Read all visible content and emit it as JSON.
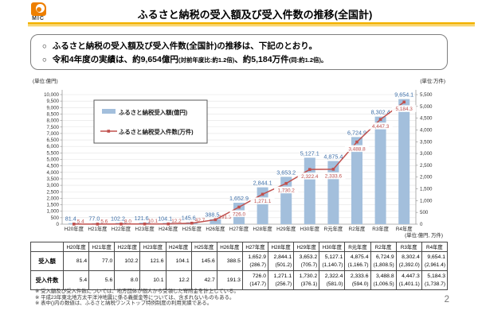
{
  "header": {
    "logo_text": "MIC",
    "title": "ふるさと納税の受入額及び受入件数の推移(全国計)",
    "accent_color": "#f3b500",
    "logo_color": "#ee7f00"
  },
  "summary_box": {
    "bullet_marker": "○",
    "bullet1": "ふるさと納税の受入額及び受入件数(全国計)の推移は、下記のとおり。",
    "bullet2_part1": "令和4年度の実績は、約9,654億円",
    "bullet2_part2": "(対前年度比:約1.2倍)",
    "bullet2_part3": "、約5,184万件",
    "bullet2_part4": "(同:約1.2倍)。"
  },
  "chart_data": {
    "type": "bar+line combo",
    "unit_left": "(単位:億円)",
    "unit_right": "(単位:万件)",
    "categories": [
      "H20年度",
      "H21年度",
      "H22年度",
      "H23年度",
      "H24年度",
      "H25年度",
      "H26年度",
      "H27年度",
      "H28年度",
      "H29年度",
      "H30年度",
      "R元年度",
      "R2年度",
      "R3年度",
      "R4年度"
    ],
    "series": [
      {
        "name": "ふるさと納税受入額(億円)",
        "type": "bar",
        "axis": "left",
        "color": "#a3bfdc",
        "label_color": "#3e6fa8",
        "values": [
          81.4,
          77.0,
          102.2,
          121.6,
          104.1,
          145.6,
          388.5,
          1652.9,
          2844.1,
          3653.2,
          5127.1,
          4875.4,
          6724.9,
          8302.4,
          9654.1
        ],
        "labels": [
          "81.4",
          "77.0",
          "102.2",
          "121.6",
          "104.1",
          "145.6",
          "388.5",
          "1,652.9",
          "2,844.1",
          "3,653.2",
          "5,127.1",
          "4,875.4",
          "6,724.9",
          "8,302.4",
          "9,654.1"
        ]
      },
      {
        "name": "ふるさと納税受入件数(万件)",
        "type": "line",
        "axis": "right",
        "color": "#c0504d",
        "label_color": "#c0504d",
        "values": [
          5.4,
          5.6,
          8.0,
          10.1,
          12.2,
          42.7,
          191.3,
          726.0,
          1271.1,
          1730.2,
          2322.4,
          2333.6,
          3488.8,
          4447.3,
          5184.3
        ],
        "labels": [
          "5.4",
          "5.6",
          "8.0",
          "10.1",
          "12.2",
          "42.7",
          "191.3",
          "726.0",
          "1,271.1",
          "1,730.2",
          "2,322.4",
          "2,333.6",
          "3,488.8",
          "4,447.3",
          "5,184.3"
        ]
      }
    ],
    "left_axis": {
      "min": 0,
      "max": 10000,
      "step": 500
    },
    "right_axis": {
      "min": 0,
      "max": 5500,
      "step": 500
    },
    "grid": true,
    "legend_position": "inside top-left"
  },
  "table": {
    "unit_note": "(単位:億円, 万件)",
    "columns": [
      "",
      "H20年度",
      "H21年度",
      "H22年度",
      "H23年度",
      "H24年度",
      "H25年度",
      "H26年度",
      "H27年度",
      "H28年度",
      "H29年度",
      "H30年度",
      "R元年度",
      "R2年度",
      "R3年度",
      "R4年度"
    ],
    "rows": [
      {
        "label": "受入額",
        "values": [
          "81.4",
          "77.0",
          "102.2",
          "121.6",
          "104.1",
          "145.6",
          "388.5",
          "1,652.9",
          "2,844.1",
          "3,653.2",
          "5,127.1",
          "4,875.4",
          "6,724.9",
          "8,302.4",
          "9,654.1"
        ],
        "sub_values": [
          "",
          "",
          "",
          "",
          "",
          "",
          "",
          "(286.7)",
          "(501.2)",
          "(705.7)",
          "(1,140.7)",
          "(1,166.7)",
          "(1,808.5)",
          "(2,392.0)",
          "(2,961.4)"
        ]
      },
      {
        "label": "受入件数",
        "values": [
          "5.4",
          "5.6",
          "8.0",
          "10.1",
          "12.2",
          "42.7",
          "191.3",
          "726.0",
          "1,271.1",
          "1,730.2",
          "2,322.4",
          "2,333.6",
          "3,488.8",
          "4,447.3",
          "5,184.3"
        ],
        "sub_values": [
          "",
          "",
          "",
          "",
          "",
          "",
          "",
          "(147.7)",
          "(256.7)",
          "(376.1)",
          "(581.0)",
          "(594.0)",
          "(1,006.5)",
          "(1,401.1)",
          "(1,738.7)"
        ]
      }
    ]
  },
  "footnotes": [
    "※ 受入額及び受入件数については、地方団体が個人から受領した寄附金を計上している。",
    "※ 平成23年東北地方太平洋沖地震に係る義援金等については、含まれないものもある。",
    "※ 表中()内の数値は、ふるさと納税ワンストップ特例制度の利用実績である。"
  ],
  "page_number": "2"
}
